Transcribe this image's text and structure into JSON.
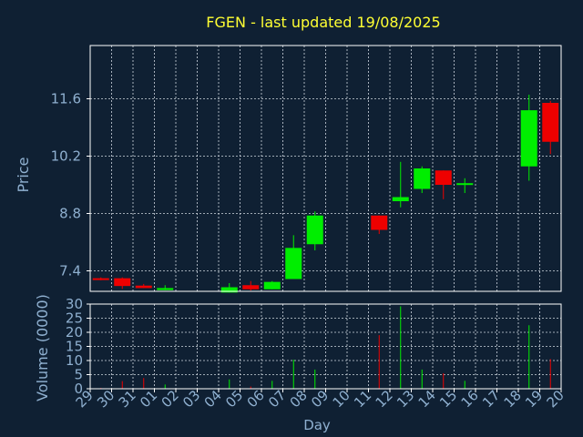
{
  "chart_data": {
    "type": "candlestick",
    "title": "FGEN - last updated 19/08/2025",
    "xlabel": "Day",
    "price_panel": {
      "ylabel": "Price",
      "yticks": [
        7.4,
        8.8,
        10.2,
        11.6
      ],
      "ylim": [
        6.9,
        12.9
      ]
    },
    "volume_panel": {
      "ylabel": "Volume (0000)",
      "yticks": [
        0,
        5,
        10,
        15,
        20,
        25,
        30
      ],
      "ylim": [
        0,
        30
      ]
    },
    "x_ticks": [
      "29",
      "30",
      "31",
      "01",
      "02",
      "03",
      "04",
      "05",
      "06",
      "07",
      "08",
      "09",
      "10",
      "11",
      "12",
      "13",
      "14",
      "15",
      "16",
      "17",
      "18",
      "19",
      "20"
    ],
    "grid": true,
    "colors": {
      "background": "#0f2033",
      "up": "#00ee00",
      "down": "#ee0000",
      "grid": "#d0d8e0",
      "title": "#ffff33",
      "axis_text": "#8fb0d0",
      "axis_line": "#ffffff"
    },
    "candles": [
      {
        "day": "29",
        "open": 7.22,
        "high": 7.24,
        "low": 7.17,
        "close": 7.2,
        "volume": 0.3
      },
      {
        "day": "30",
        "open": 7.22,
        "high": 7.24,
        "low": 6.96,
        "close": 7.03,
        "volume": 2.7
      },
      {
        "day": "31",
        "open": 7.04,
        "high": 7.08,
        "low": 6.98,
        "close": 6.98,
        "volume": 3.8
      },
      {
        "day": "01",
        "open": 6.93,
        "high": 7.05,
        "low": 6.93,
        "close": 6.98,
        "volume": 1.5
      },
      {
        "day": "04",
        "open": 6.87,
        "high": 7.1,
        "low": 6.87,
        "close": 7.0,
        "volume": 3.3
      },
      {
        "day": "05",
        "open": 7.05,
        "high": 7.15,
        "low": 6.92,
        "close": 6.95,
        "volume": 0.8
      },
      {
        "day": "06",
        "open": 6.95,
        "high": 7.15,
        "low": 6.95,
        "close": 7.13,
        "volume": 2.8
      },
      {
        "day": "07",
        "open": 7.2,
        "high": 8.27,
        "low": 7.2,
        "close": 7.96,
        "volume": 10.3
      },
      {
        "day": "08",
        "open": 8.05,
        "high": 8.85,
        "low": 7.9,
        "close": 8.75,
        "volume": 6.8
      },
      {
        "day": "11",
        "open": 8.75,
        "high": 8.75,
        "low": 8.3,
        "close": 8.4,
        "volume": 19.0
      },
      {
        "day": "12",
        "open": 9.1,
        "high": 10.06,
        "low": 8.95,
        "close": 9.2,
        "volume": 29.2
      },
      {
        "day": "13",
        "open": 9.4,
        "high": 9.95,
        "low": 9.3,
        "close": 9.9,
        "volume": 6.8
      },
      {
        "day": "14",
        "open": 9.85,
        "high": 9.85,
        "low": 9.15,
        "close": 9.5,
        "volume": 5.5
      },
      {
        "day": "15",
        "open": 9.54,
        "high": 9.66,
        "low": 9.3,
        "close": 9.54,
        "volume": 2.8
      },
      {
        "day": "18",
        "open": 9.95,
        "high": 11.7,
        "low": 9.6,
        "close": 11.32,
        "volume": 22.5
      },
      {
        "day": "19",
        "open": 11.5,
        "high": 11.55,
        "low": 10.25,
        "close": 10.55,
        "volume": 10.5
      }
    ]
  }
}
